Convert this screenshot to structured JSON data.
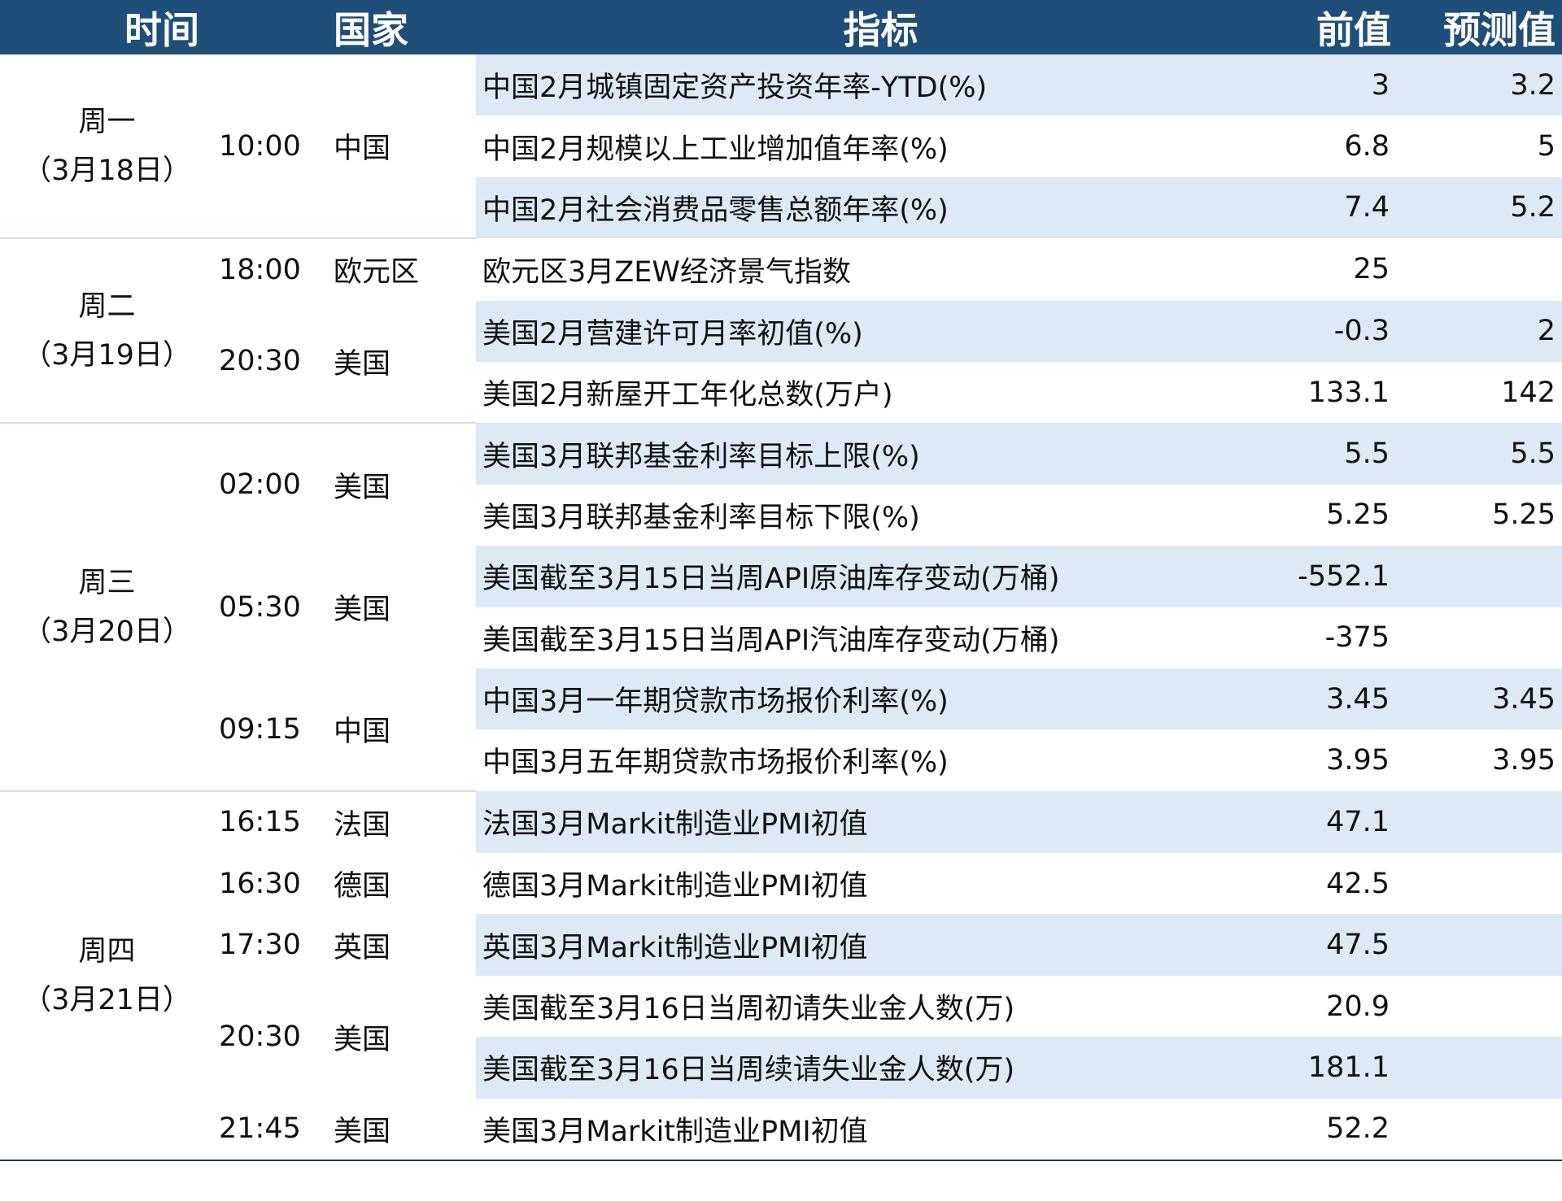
{
  "header": {
    "time": "时间",
    "country": "国家",
    "indicator": "指标",
    "previous": "前值",
    "forecast": "预测值"
  },
  "colors": {
    "header_bg": "#1f4e79",
    "stripe": "#dde9f5"
  },
  "days": [
    {
      "day": "周一",
      "date": "（3月18日）",
      "rows": 3
    },
    {
      "day": "周二",
      "date": "（3月19日）",
      "rows": 3
    },
    {
      "day": "周三",
      "date": "（3月20日）",
      "rows": 6
    },
    {
      "day": "周四",
      "date": "（3月21日）",
      "rows": 6
    }
  ],
  "slots": [
    {
      "time": "10:00",
      "country": "中国",
      "rows": 3
    },
    {
      "time": "18:00",
      "country": "欧元区",
      "rows": 1
    },
    {
      "time": "20:30",
      "country": "美国",
      "rows": 2
    },
    {
      "time": "02:00",
      "country": "美国",
      "rows": 2
    },
    {
      "time": "05:30",
      "country": "美国",
      "rows": 2
    },
    {
      "time": "09:15",
      "country": "中国",
      "rows": 2
    },
    {
      "time": "16:15",
      "country": "法国",
      "rows": 1
    },
    {
      "time": "16:30",
      "country": "德国",
      "rows": 1
    },
    {
      "time": "17:30",
      "country": "英国",
      "rows": 1
    },
    {
      "time": "20:30",
      "country": "美国",
      "rows": 2
    },
    {
      "time": "21:45",
      "country": "美国",
      "rows": 1
    }
  ],
  "rows": [
    {
      "indicator": "中国2月城镇固定资产投资年率-YTD(%)",
      "previous": "3",
      "forecast": "3.2"
    },
    {
      "indicator": "中国2月规模以上工业增加值年率(%)",
      "previous": "6.8",
      "forecast": "5"
    },
    {
      "indicator": "中国2月社会消费品零售总额年率(%)",
      "previous": "7.4",
      "forecast": "5.2"
    },
    {
      "indicator": "欧元区3月ZEW经济景气指数",
      "previous": "25",
      "forecast": ""
    },
    {
      "indicator": "美国2月营建许可月率初值(%)",
      "previous": "-0.3",
      "forecast": "2"
    },
    {
      "indicator": "美国2月新屋开工年化总数(万户)",
      "previous": "133.1",
      "forecast": "142"
    },
    {
      "indicator": "美国3月联邦基金利率目标上限(%)",
      "previous": "5.5",
      "forecast": "5.5"
    },
    {
      "indicator": "美国3月联邦基金利率目标下限(%)",
      "previous": "5.25",
      "forecast": "5.25"
    },
    {
      "indicator": "美国截至3月15日当周API原油库存变动(万桶)",
      "previous": "-552.1",
      "forecast": ""
    },
    {
      "indicator": "美国截至3月15日当周API汽油库存变动(万桶)",
      "previous": "-375",
      "forecast": ""
    },
    {
      "indicator": "中国3月一年期贷款市场报价利率(%)",
      "previous": "3.45",
      "forecast": "3.45"
    },
    {
      "indicator": "中国3月五年期贷款市场报价利率(%)",
      "previous": "3.95",
      "forecast": "3.95"
    },
    {
      "indicator": "法国3月Markit制造业PMI初值",
      "previous": "47.1",
      "forecast": ""
    },
    {
      "indicator": "德国3月Markit制造业PMI初值",
      "previous": "42.5",
      "forecast": ""
    },
    {
      "indicator": "英国3月Markit制造业PMI初值",
      "previous": "47.5",
      "forecast": ""
    },
    {
      "indicator": "美国截至3月16日当周初请失业金人数(万)",
      "previous": "20.9",
      "forecast": ""
    },
    {
      "indicator": "美国截至3月16日当周续请失业金人数(万)",
      "previous": "181.1",
      "forecast": ""
    },
    {
      "indicator": "美国3月Markit制造业PMI初值",
      "previous": "52.2",
      "forecast": ""
    }
  ]
}
